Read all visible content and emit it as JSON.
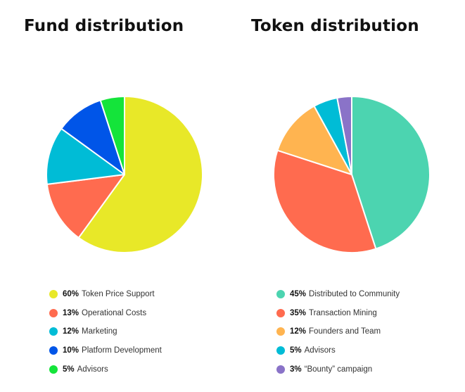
{
  "chart_data": [
    {
      "type": "pie",
      "title": "Fund distribution",
      "slices": [
        {
          "label": "Token Price Support",
          "value": 60,
          "pct_label": "60%",
          "color": "#e8e828"
        },
        {
          "label": "Operational Costs",
          "value": 13,
          "pct_label": "13%",
          "color": "#ff6b4f"
        },
        {
          "label": "Marketing",
          "value": 12,
          "pct_label": "12%",
          "color": "#00bcd6"
        },
        {
          "label": "Platform Development",
          "value": 10,
          "pct_label": "10%",
          "color": "#0055e8"
        },
        {
          "label": "Advisors",
          "value": 5,
          "pct_label": "5%",
          "color": "#14e43a"
        }
      ],
      "legend_position": "bottom"
    },
    {
      "type": "pie",
      "title": "Token distribution",
      "slices": [
        {
          "label": "Distributed to Community",
          "value": 45,
          "pct_label": "45%",
          "color": "#4cd4b0"
        },
        {
          "label": "Transaction Mining",
          "value": 35,
          "pct_label": "35%",
          "color": "#ff6b4f"
        },
        {
          "label": "Founders and Team",
          "value": 12,
          "pct_label": "12%",
          "color": "#ffb450"
        },
        {
          "label": "Advisors",
          "value": 5,
          "pct_label": "5%",
          "color": "#00bcd6"
        },
        {
          "label": "“Bounty” campaign",
          "value": 3,
          "pct_label": "3%",
          "color": "#8a73c8"
        }
      ],
      "legend_position": "bottom"
    }
  ]
}
